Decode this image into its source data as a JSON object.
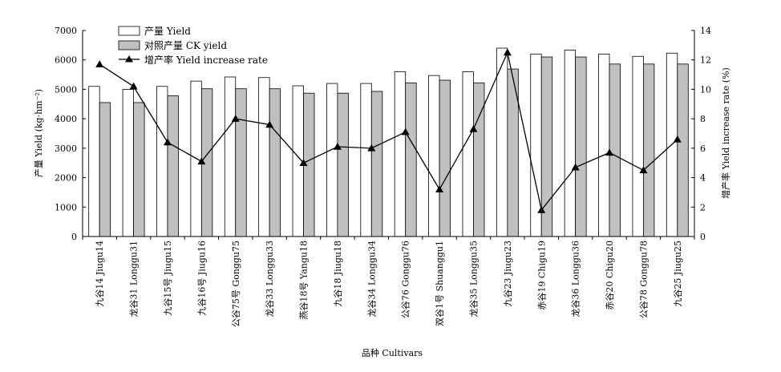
{
  "chart_data": {
    "type": "bar",
    "xlabel": "品种 Cultivars",
    "ylabel": "产量 Yield (kg·hm⁻²)",
    "y2label": "增产率 Yield increase rate (%)",
    "ylim": [
      0,
      7000
    ],
    "y2lim": [
      0,
      14
    ],
    "yticks": [
      "0",
      "1000",
      "2000",
      "3000",
      "4000",
      "5000",
      "6000",
      "7000"
    ],
    "y2ticks": [
      "0",
      "2",
      "4",
      "6",
      "8",
      "10",
      "12",
      "14"
    ],
    "legend_position": "top-left",
    "grid": false,
    "categories": [
      "九谷14 Jiugu14",
      "龙谷31 Longgu31",
      "九谷15号 Jiugu15",
      "九谷16号 Jiugu16",
      "公谷75号 Gonggu75",
      "龙谷33 Longgu33",
      "燕谷18号 Yangu18",
      "九谷18 Jiugu18",
      "龙谷34 Longgu34",
      "公谷76 Gonggu76",
      "双谷1号 Shuanggu1",
      "龙谷35 Longgu35",
      "九谷23 Jiugu23",
      "赤谷19 Chigu19",
      "龙谷36 Longgu36",
      "赤谷20 Chigu20",
      "公谷78 Gonggu78",
      "九谷25 Jiugu25"
    ],
    "series": [
      {
        "name": "产量 Yield",
        "type": "bar",
        "color": "#ffffff",
        "values": [
          5100,
          5000,
          5100,
          5280,
          5420,
          5400,
          5120,
          5200,
          5200,
          5600,
          5470,
          5600,
          6400,
          6200,
          6330,
          6200,
          6120,
          6230
        ]
      },
      {
        "name": "对照产量 CK yield",
        "type": "bar",
        "color": "#c0c0c0",
        "values": [
          4550,
          4550,
          4780,
          5020,
          5020,
          5020,
          4870,
          4870,
          4930,
          5220,
          5310,
          5220,
          5690,
          6100,
          6100,
          5860,
          5860,
          5860
        ]
      },
      {
        "name": "增产率 Yield increase rate",
        "type": "line",
        "axis": "right",
        "color": "#000000",
        "marker": "triangle",
        "values": [
          11.7,
          10.2,
          6.4,
          5.1,
          8.0,
          7.6,
          5.0,
          6.1,
          6.0,
          7.1,
          3.2,
          7.3,
          12.5,
          1.8,
          4.7,
          5.7,
          4.5,
          6.6
        ]
      }
    ]
  }
}
